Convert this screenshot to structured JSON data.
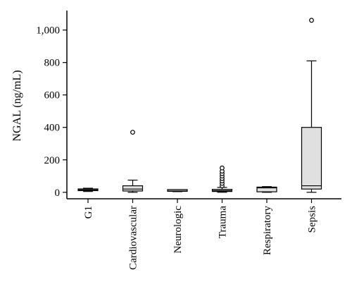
{
  "chart_data": {
    "type": "box",
    "title": "",
    "ylabel": "NGAL (ng/mL)",
    "xlabel": "",
    "ylim": [
      -40,
      1120
    ],
    "yticks": [
      0,
      200,
      400,
      600,
      800,
      1000
    ],
    "ytick_labels": [
      "0",
      "200",
      "400",
      "600",
      "800",
      "1,000"
    ],
    "box_fill": "#e0e0e0",
    "categories": [
      "G1",
      "Cardiovascular",
      "Neurologic",
      "Trauma",
      "Respiratory",
      "Sepsis"
    ],
    "boxes": [
      {
        "category": "G1",
        "min": 5,
        "q1": 10,
        "median": 15,
        "q3": 20,
        "max": 25,
        "outliers": []
      },
      {
        "category": "Cardiovascular",
        "min": 0,
        "q1": 8,
        "median": 20,
        "q3": 40,
        "max": 75,
        "outliers": [
          370
        ]
      },
      {
        "category": "Neurologic",
        "min": 4,
        "q1": 6,
        "median": 8,
        "q3": 10,
        "max": 12,
        "outliers": []
      },
      {
        "category": "Trauma",
        "min": 0,
        "q1": 5,
        "median": 10,
        "q3": 18,
        "max": 30,
        "outliers": [
          40,
          55,
          70,
          85,
          100,
          115,
          130,
          150
        ]
      },
      {
        "category": "Respiratory",
        "min": 0,
        "q1": 3,
        "median": 27,
        "q3": 32,
        "max": 35,
        "outliers": []
      },
      {
        "category": "Sepsis",
        "min": 0,
        "q1": 20,
        "median": 40,
        "q3": 400,
        "max": 810,
        "outliers": [
          1060
        ]
      }
    ]
  }
}
